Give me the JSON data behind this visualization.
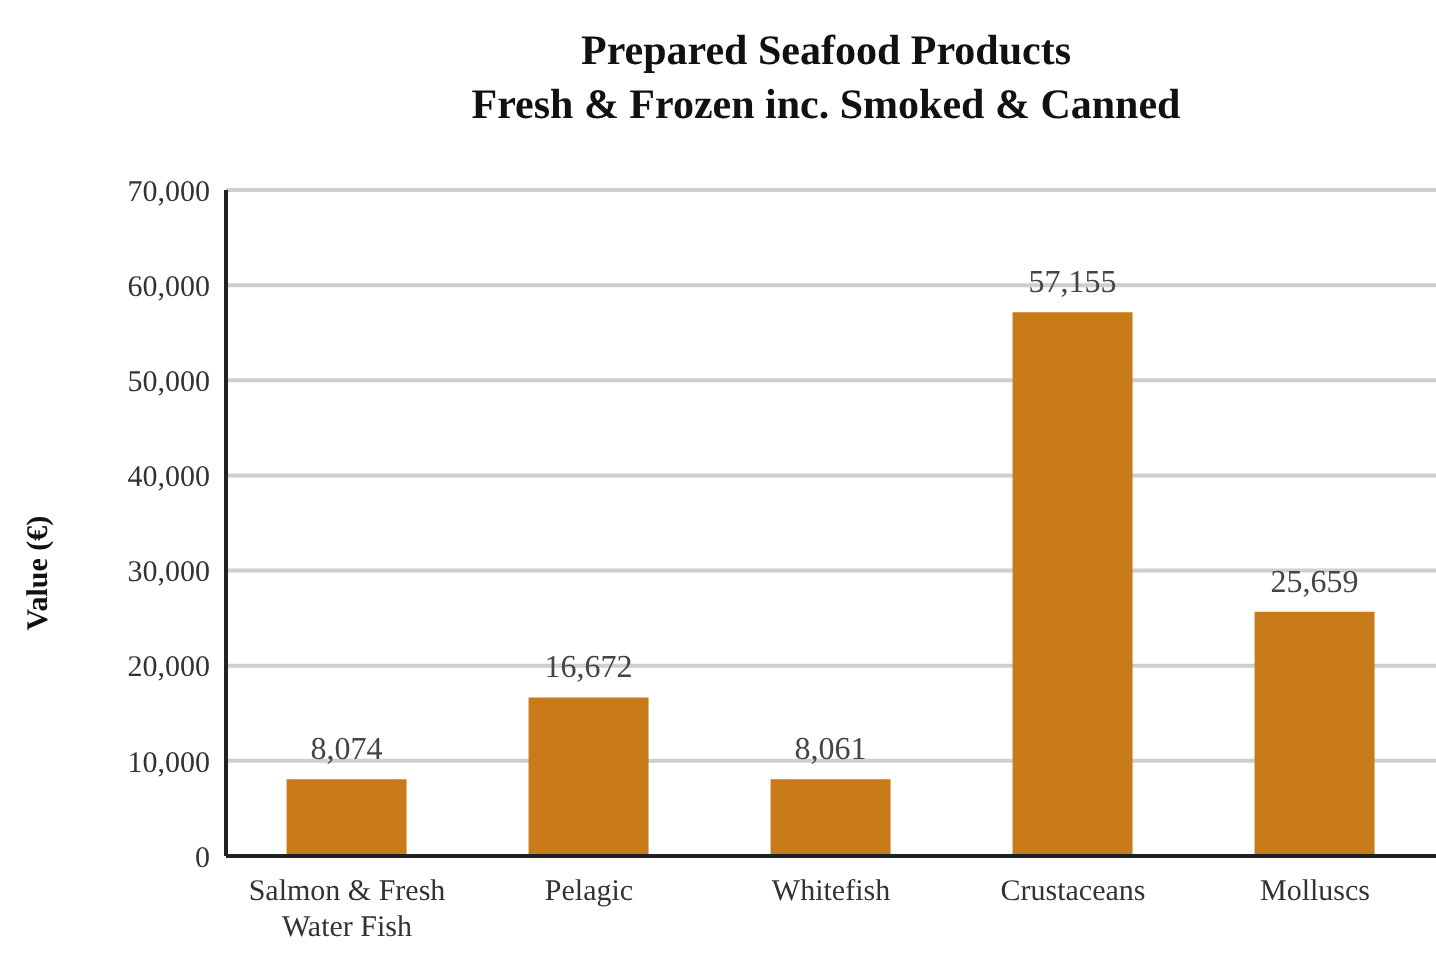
{
  "chart_data": {
    "type": "bar",
    "title": "Prepared Seafood Products\nFresh & Frozen inc. Smoked & Canned",
    "ylabel": "Value (€)",
    "categories": [
      "Salmon & Fresh Water Fish",
      "Pelagic",
      "Whitefish",
      "Crustaceans",
      "Molluscs"
    ],
    "values": [
      8074,
      16672,
      8061,
      57155,
      25659
    ],
    "value_labels": [
      "8,074",
      "16,672",
      "8,061",
      "57,155",
      "25,659"
    ],
    "color": "#c97b1a",
    "ylim": [
      0,
      70000
    ],
    "yticks": [
      0,
      {
        "value": 10000,
        "label": "10,000"
      },
      {
        "value": 20000,
        "label": "20,000"
      },
      {
        "value": 30000,
        "label": "30,000"
      },
      {
        "value": 40000,
        "label": "40,000"
      },
      {
        "value": 50000,
        "label": "50,000"
      },
      {
        "value": 60000,
        "label": "60,000"
      },
      {
        "value": 70000,
        "label": "70,000"
      }
    ],
    "grid": "y"
  }
}
